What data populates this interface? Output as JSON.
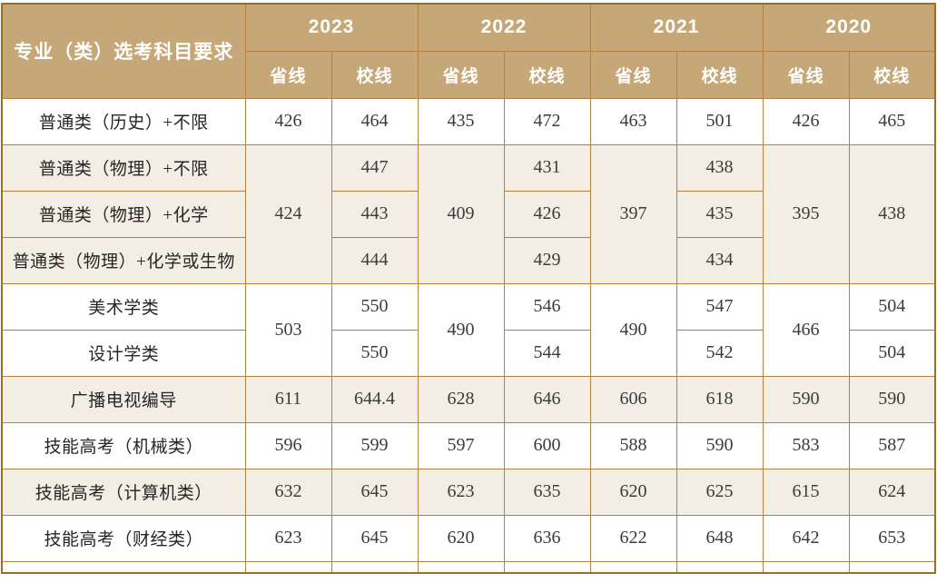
{
  "chart_data": {
    "type": "table",
    "corner_header": "专业（类）选考科目要求",
    "years": [
      "2023",
      "2022",
      "2021",
      "2020"
    ],
    "subheader_province": "省线",
    "subheader_school": "校线",
    "column_pattern_per_year": [
      "省线",
      "校线"
    ],
    "rows": [
      {
        "label": "普通类（历史）+不限",
        "values": [
          "426",
          "464",
          "435",
          "472",
          "463",
          "501",
          "426",
          "465"
        ]
      },
      {
        "label": "普通类（物理）+不限",
        "values": [
          "424",
          "447",
          "409",
          "431",
          "397",
          "438",
          "395",
          "438"
        ]
      },
      {
        "label": "普通类（物理）+化学",
        "values": [
          "424",
          "443",
          "409",
          "426",
          "397",
          "435",
          "395",
          "438"
        ]
      },
      {
        "label": "普通类（物理）+化学或生物",
        "values": [
          "424",
          "444",
          "409",
          "429",
          "397",
          "434",
          "395",
          "438"
        ]
      },
      {
        "label": "美术学类",
        "values": [
          "503",
          "550",
          "490",
          "546",
          "490",
          "547",
          "466",
          "504"
        ]
      },
      {
        "label": "设计学类",
        "values": [
          "503",
          "550",
          "490",
          "544",
          "490",
          "542",
          "466",
          "504"
        ]
      },
      {
        "label": "广播电视编导",
        "values": [
          "611",
          "644.4",
          "628",
          "646",
          "606",
          "618",
          "590",
          "590"
        ]
      },
      {
        "label": "技能高考（机械类）",
        "values": [
          "596",
          "599",
          "597",
          "600",
          "588",
          "590",
          "583",
          "587"
        ]
      },
      {
        "label": "技能高考（计算机类）",
        "values": [
          "632",
          "645",
          "623",
          "635",
          "620",
          "625",
          "615",
          "624"
        ]
      },
      {
        "label": "技能高考（财经类）",
        "values": [
          "623",
          "645",
          "620",
          "636",
          "622",
          "648",
          "642",
          "653"
        ]
      }
    ],
    "merged_cells": [
      "2023省线 424 spans the three 物理 rows",
      "2022省线 409 spans the three 物理 rows",
      "2021省线 397 spans the three 物理 rows",
      "2020省线 395 spans the three 物理 rows",
      "2020校线 438 spans the three 物理 rows",
      "2023省线 503 spans 美术学类/设计学类",
      "2022省线 490 spans 美术学类/设计学类",
      "2021省线 490 spans 美术学类/设计学类",
      "2020省线 466 spans 美术学类/设计学类"
    ],
    "colors": {
      "header_bg": "#c6a777",
      "header_text": "#ffffff",
      "border": "#b08440",
      "outer_border": "#9c6f28",
      "alt_bg": "#f3eee3",
      "row_bg": "#ffffff",
      "num_text": "#3b3b3b",
      "label_text": "#262626"
    }
  }
}
